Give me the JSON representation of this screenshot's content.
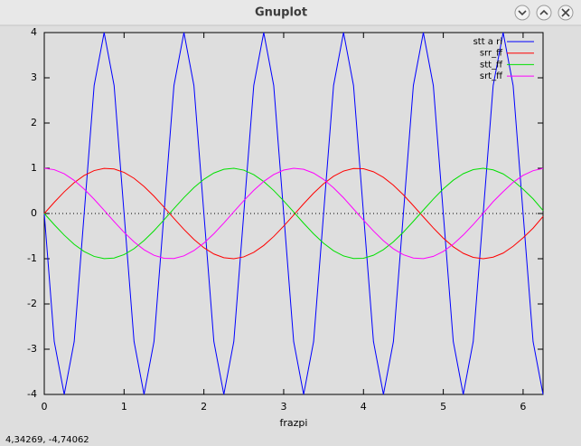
{
  "window": {
    "title": "Gnuplot",
    "status": "4,34269, -4,74062"
  },
  "chart_data": {
    "type": "line",
    "x_label": "frazpi",
    "x": [
      0,
      0.125,
      0.25,
      0.375,
      0.5,
      0.625,
      0.75,
      0.875,
      1,
      1.125,
      1.25,
      1.375,
      1.5,
      1.625,
      1.75,
      1.875,
      2,
      2.125,
      2.25,
      2.375,
      2.5,
      2.625,
      2.75,
      2.875,
      3,
      3.125,
      3.25,
      3.375,
      3.5,
      3.625,
      3.75,
      3.875,
      4,
      4.125,
      4.25,
      4.375,
      4.5,
      4.625,
      4.75,
      4.875,
      5,
      5.125,
      5.25,
      5.375,
      5.5,
      5.625,
      5.75,
      5.875,
      6,
      6.125,
      6.25
    ],
    "series": [
      {
        "name": "stt a ri",
        "color": "#0000ff",
        "values": [
          0,
          -2.83,
          -4,
          -2.83,
          0,
          2.83,
          4,
          2.83,
          0,
          -2.83,
          -4,
          -2.83,
          0,
          2.83,
          4,
          2.83,
          0,
          -2.83,
          -4,
          -2.83,
          0,
          2.83,
          4,
          2.83,
          0,
          -2.83,
          -4,
          -2.83,
          0,
          2.83,
          4,
          2.83,
          0,
          -2.83,
          -4,
          -2.83,
          0,
          2.83,
          4,
          2.83,
          0,
          -2.83,
          -4,
          -2.83,
          0,
          2.83,
          4,
          2.83,
          0,
          -2.83,
          -4
        ]
      },
      {
        "name": "srr_ff",
        "color": "#ff0000",
        "values": [
          0,
          0.247,
          0.479,
          0.682,
          0.841,
          0.949,
          0.997,
          0.984,
          0.909,
          0.778,
          0.598,
          0.382,
          0.141,
          -0.108,
          -0.351,
          -0.572,
          -0.757,
          -0.895,
          -0.978,
          -0.999,
          -0.959,
          -0.859,
          -0.706,
          -0.509,
          -0.279,
          -0.033,
          0.215,
          0.45,
          0.657,
          0.823,
          0.938,
          0.995,
          0.989,
          0.923,
          0.798,
          0.625,
          0.412,
          0.173,
          -0.075,
          -0.319,
          -0.544,
          -0.736,
          -0.88,
          -0.97,
          -1,
          -0.965,
          -0.875,
          -0.725,
          -0.537,
          -0.325,
          -0.066
        ]
      },
      {
        "name": "stt_ff",
        "color": "#00e000",
        "values": [
          0,
          -0.247,
          -0.479,
          -0.682,
          -0.841,
          -0.949,
          -0.997,
          -0.984,
          -0.909,
          -0.778,
          -0.598,
          -0.382,
          -0.141,
          0.108,
          0.351,
          0.572,
          0.757,
          0.895,
          0.978,
          0.999,
          0.959,
          0.859,
          0.706,
          0.509,
          0.279,
          0.033,
          -0.215,
          -0.45,
          -0.657,
          -0.823,
          -0.938,
          -0.995,
          -0.989,
          -0.923,
          -0.798,
          -0.625,
          -0.412,
          -0.173,
          0.075,
          0.319,
          0.544,
          0.736,
          0.88,
          0.97,
          1,
          0.965,
          0.875,
          0.725,
          0.537,
          0.325,
          0.066
        ]
      },
      {
        "name": "srt_ff",
        "color": "#ff00ff",
        "values": [
          1,
          0.969,
          0.878,
          0.732,
          0.54,
          0.315,
          0.071,
          -0.178,
          -0.416,
          -0.628,
          -0.801,
          -0.924,
          -0.99,
          -0.994,
          -0.936,
          -0.82,
          -0.654,
          -0.447,
          -0.211,
          0.038,
          0.284,
          0.512,
          0.709,
          0.861,
          0.96,
          0.999,
          0.977,
          0.893,
          0.754,
          0.568,
          0.347,
          0.1,
          -0.146,
          -0.386,
          -0.602,
          -0.781,
          -0.911,
          -0.985,
          -0.997,
          -0.948,
          -0.839,
          -0.677,
          -0.476,
          -0.244,
          0.004,
          0.262,
          0.483,
          0.689,
          0.844,
          0.946,
          0.998
        ]
      }
    ],
    "xlim": [
      0,
      6.25
    ],
    "xticks": [
      0,
      1,
      2,
      3,
      4,
      5,
      6
    ],
    "ylim": [
      -4,
      4
    ],
    "yticks": [
      -4,
      -3,
      -2,
      -1,
      0,
      1,
      2,
      3,
      4
    ],
    "zeroaxis": true,
    "legend": "top-right"
  }
}
